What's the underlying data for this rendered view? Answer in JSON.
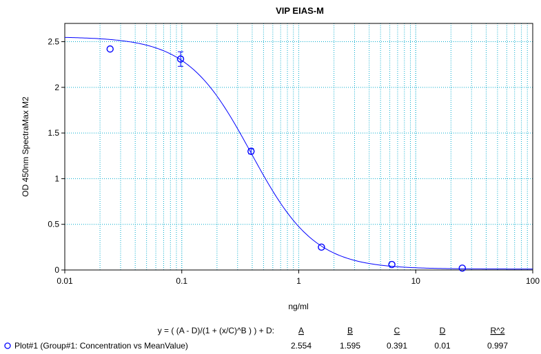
{
  "chart_data": {
    "type": "scatter",
    "title": "VIP EIAS-M",
    "xlabel": "ng/ml",
    "ylabel": "OD 450nm SpectraMax M2",
    "xscale": "log",
    "xlim": [
      0.01,
      100
    ],
    "ylim": [
      0,
      2.7
    ],
    "x_ticks": [
      "0.01",
      "0.1",
      "1",
      "10",
      "100"
    ],
    "y_ticks": [
      "0",
      "0.5",
      "1",
      "1.5",
      "2",
      "2.5"
    ],
    "grid": true,
    "colors": {
      "series": "#0000ff",
      "grid": "#00aacc"
    },
    "series": [
      {
        "name": "Plot#1 (Group#1: Concentration vs MeanValue)",
        "marker": "circle",
        "points": [
          {
            "x": 0.0244,
            "y": 2.42,
            "err": 0.0
          },
          {
            "x": 0.0977,
            "y": 2.31,
            "err": 0.08
          },
          {
            "x": 0.391,
            "y": 1.3,
            "err": 0.03
          },
          {
            "x": 1.5625,
            "y": 0.25,
            "err": 0.0
          },
          {
            "x": 6.25,
            "y": 0.06,
            "err": 0.0
          },
          {
            "x": 25,
            "y": 0.02,
            "err": 0.0
          }
        ]
      }
    ],
    "fit": {
      "equation": "y = ( (A - D)/(1 + (x/C)^B ) ) + D:",
      "params": [
        {
          "name": "A",
          "value": "2.554"
        },
        {
          "name": "B",
          "value": "1.595"
        },
        {
          "name": "C",
          "value": "0.391"
        },
        {
          "name": "D",
          "value": "0.01"
        },
        {
          "name": "R^2",
          "value": "0.997"
        }
      ],
      "A": 2.554,
      "B": 1.595,
      "C": 0.391,
      "D": 0.01
    }
  }
}
